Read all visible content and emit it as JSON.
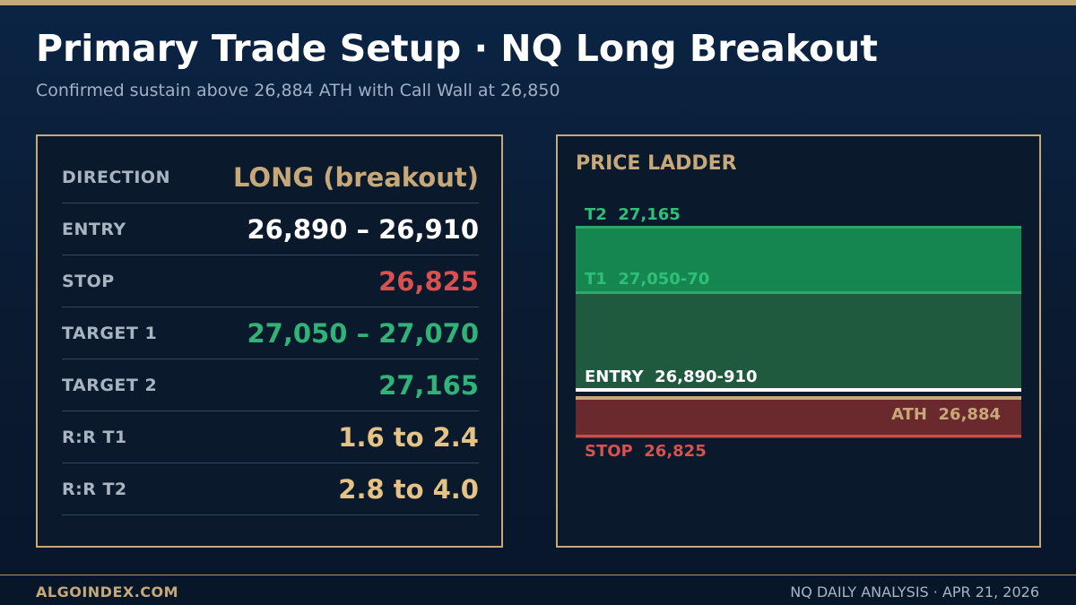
{
  "header": {
    "title": "Primary Trade Setup  ·  NQ Long Breakout",
    "subtitle": "Confirmed sustain above 26,884 ATH with Call Wall at 26,850"
  },
  "setup": {
    "rows": [
      {
        "label": "DIRECTION",
        "value": "LONG (breakout)",
        "color": "#c7a878"
      },
      {
        "label": "ENTRY",
        "value": "26,890 – 26,910",
        "color": "#ffffff"
      },
      {
        "label": "STOP",
        "value": "26,825",
        "color": "#d8514f"
      },
      {
        "label": "TARGET 1",
        "value": "27,050 – 27,070",
        "color": "#2fb377"
      },
      {
        "label": "TARGET 2",
        "value": "27,165",
        "color": "#2fb377"
      },
      {
        "label": "R:R T1",
        "value": "1.6 to 2.4",
        "color": "#e5c384"
      },
      {
        "label": "R:R T2",
        "value": "2.8 to 4.0",
        "color": "#e5c384"
      }
    ]
  },
  "ladder": {
    "title": "PRICE LADDER",
    "t2": "T2  27,165",
    "t1": "T1  27,050-70",
    "entry": "ENTRY  26,890-910",
    "ath": "ATH  26,884",
    "stop": "STOP  26,825"
  },
  "footer": {
    "brand": "ALGOINDEX.COM",
    "info": "NQ DAILY ANALYSIS  ·  APR 21, 2026"
  },
  "colors": {
    "accent": "#c7a878",
    "green": "#2fb377",
    "red": "#d8514f",
    "gold": "#e5c384"
  }
}
